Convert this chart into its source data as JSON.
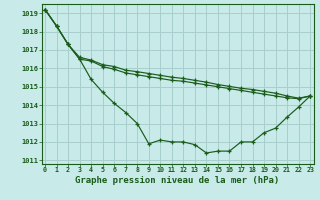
{
  "background_color": "#c8eae8",
  "grid_color": "#a8cece",
  "line_color": "#1a5c1a",
  "title": "Graphe pression niveau de la mer (hPa)",
  "xlim": [
    0,
    23
  ],
  "ylim": [
    1010.8,
    1019.5
  ],
  "yticks": [
    1011,
    1012,
    1013,
    1014,
    1015,
    1016,
    1017,
    1018,
    1019
  ],
  "xticks": [
    0,
    1,
    2,
    3,
    4,
    5,
    6,
    7,
    8,
    9,
    10,
    11,
    12,
    13,
    14,
    15,
    16,
    17,
    18,
    19,
    20,
    21,
    22,
    23
  ],
  "series": [
    [
      1019.2,
      1018.3,
      1017.3,
      1016.5,
      1015.4,
      1014.7,
      1014.1,
      1013.6,
      1013.0,
      1011.9,
      1012.1,
      1012.0,
      1012.0,
      1011.85,
      1011.4,
      1011.5,
      1011.5,
      1012.0,
      1012.0,
      1012.5,
      1012.75,
      1013.35,
      1013.9,
      1014.5
    ],
    [
      1019.2,
      1018.3,
      1017.3,
      1016.5,
      1016.4,
      1016.1,
      1015.95,
      1015.75,
      1015.65,
      1015.55,
      1015.45,
      1015.35,
      1015.3,
      1015.2,
      1015.1,
      1015.0,
      1014.9,
      1014.8,
      1014.7,
      1014.6,
      1014.5,
      1014.4,
      1014.35,
      1014.5
    ],
    [
      1019.2,
      1018.3,
      1017.3,
      1016.6,
      1016.45,
      1016.2,
      1016.1,
      1015.9,
      1015.82,
      1015.72,
      1015.62,
      1015.52,
      1015.45,
      1015.35,
      1015.25,
      1015.12,
      1015.02,
      1014.92,
      1014.85,
      1014.75,
      1014.65,
      1014.5,
      1014.38,
      1014.5
    ]
  ]
}
